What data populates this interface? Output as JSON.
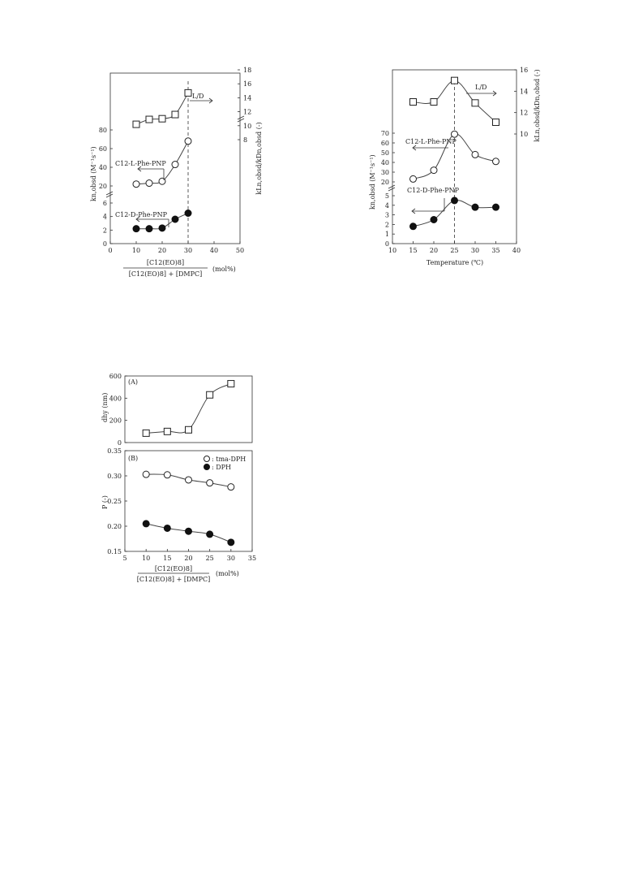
{
  "chart_data": [
    {
      "id": "c1",
      "type": "line",
      "xlabel_num": "[C12(EO)8]",
      "xlabel_den": "[C12(EO)8] + [DMPC]",
      "xlabel_unit": "(mol%)",
      "ylabel": "kn,obsd (M⁻¹s⁻¹)",
      "y2label": "kLn,obsd/kDn,obsd (-)",
      "xlim": [
        0,
        50
      ],
      "xticks": [
        "0",
        "10",
        "20",
        "30",
        "40",
        "50"
      ],
      "ylow_ticks": [
        "0",
        "2",
        "4",
        "6"
      ],
      "yhigh_ticks": [
        "20",
        "40",
        "60",
        "80"
      ],
      "y2_ticks": [
        "8",
        "10",
        "12",
        "14",
        "16",
        "18"
      ],
      "dashed_x": 30,
      "series": [
        {
          "name": "C12-L-Phe-PNP",
          "marker": "open-circle",
          "x": [
            10,
            15,
            20,
            25,
            30
          ],
          "y": [
            22,
            23,
            25,
            43,
            68
          ]
        },
        {
          "name": "C12-D-Phe-PNP",
          "marker": "filled-circle",
          "x": [
            10,
            15,
            20,
            25,
            30
          ],
          "y": [
            2.2,
            2.2,
            2.3,
            3.6,
            4.5
          ]
        },
        {
          "name": "L/D",
          "marker": "open-square",
          "x": [
            10,
            15,
            20,
            25,
            30
          ],
          "y": [
            10.2,
            10.9,
            11.0,
            11.6,
            14.7
          ]
        }
      ]
    },
    {
      "id": "c2",
      "type": "line",
      "xlabel": "Temperature (℃)",
      "ylabel": "kn,obsd (M⁻¹s⁻¹)",
      "y2label": "kLn,obsd/kDn,obsd (-)",
      "xlim": [
        10,
        40
      ],
      "xticks": [
        "10",
        "15",
        "20",
        "25",
        "30",
        "35",
        "40"
      ],
      "ylow_ticks": [
        "0",
        "1",
        "2",
        "3",
        "4",
        "5"
      ],
      "yhigh_ticks": [
        "20",
        "30",
        "40",
        "50",
        "60",
        "70"
      ],
      "y2_ticks": [
        "10",
        "12",
        "14",
        "16"
      ],
      "dashed_x": 25,
      "series": [
        {
          "name": "C12-L-Phe-PNP",
          "marker": "open-circle",
          "x": [
            15,
            20,
            25,
            30,
            35
          ],
          "y": [
            23,
            32,
            69,
            48,
            41
          ]
        },
        {
          "name": "C12-D-Phe-PNP",
          "marker": "filled-circle",
          "x": [
            15,
            20,
            25,
            30,
            35
          ],
          "y": [
            1.8,
            2.5,
            4.5,
            3.8,
            3.8
          ]
        },
        {
          "name": "L/D",
          "marker": "open-square",
          "x": [
            15,
            20,
            25,
            30,
            35
          ],
          "y": [
            13.0,
            13.0,
            15.0,
            12.9,
            11.1
          ]
        }
      ]
    },
    {
      "id": "c3",
      "type": "line",
      "panel_a_label": "(A)",
      "panel_b_label": "(B)",
      "ylabel_a": "dhy (nm)",
      "ylabel_b": "P (-)",
      "xlabel_num": "[C12(EO)8]",
      "xlabel_den": "[C12(EO)8] + [DMPC]",
      "xlabel_unit": "(mol%)",
      "xlim": [
        5,
        35
      ],
      "xticks": [
        "5",
        "10",
        "15",
        "20",
        "25",
        "30",
        "35"
      ],
      "ya_ticks": [
        "0",
        "200",
        "400",
        "600"
      ],
      "yb_ticks": [
        "0.15",
        "0.20",
        "0.25",
        "0.30",
        "0.35"
      ],
      "legend": [
        ": tma-DPH",
        ": DPH"
      ],
      "series": [
        {
          "name": "dhy",
          "marker": "open-square",
          "x": [
            10,
            15,
            20,
            25,
            30
          ],
          "y": [
            85,
            100,
            115,
            430,
            530
          ]
        },
        {
          "name": "tma-DPH",
          "marker": "open-circle",
          "x": [
            10,
            15,
            20,
            25,
            30
          ],
          "y": [
            0.303,
            0.302,
            0.292,
            0.286,
            0.278
          ]
        },
        {
          "name": "DPH",
          "marker": "filled-circle",
          "x": [
            10,
            15,
            20,
            25,
            30
          ],
          "y": [
            0.205,
            0.196,
            0.19,
            0.184,
            0.168
          ]
        }
      ]
    }
  ]
}
